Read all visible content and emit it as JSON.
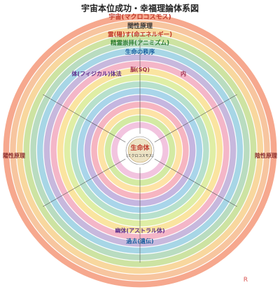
{
  "title": "宇宙本位成功・幸福理論体系図",
  "center": {
    "main": "生命体",
    "sub": "(ミクロコスモス)"
  },
  "ring_labels": {
    "macro": "宇宙(マクロコスモス)",
    "inter": "間性原理",
    "reiun": "霊(陽)す(命エネルギー)",
    "seirei": "精霊崇拝(アニミズム)",
    "order": "生命の秩序",
    "tai": "体(フィジカル)体法",
    "sq": "脳(SQ)",
    "naiiki": "内",
    "past": "過去(遺伝)",
    "astral": "幽体(アストラル体)",
    "left_spiritual": "陽性原理",
    "right_spiritual": "陰性原理"
  },
  "ring_colors": [
    "#f6a88e",
    "#f7c59f",
    "#f8d79e",
    "#cde3a2",
    "#b9dcc0",
    "#a7d6e6",
    "#c7b8dd",
    "#f4b6c8",
    "#fae4a0",
    "#dfeea5",
    "#b7e0cc",
    "#a9d5ea",
    "#c5b6e0",
    "#f6b5c1",
    "#fde3a6",
    "#d3eaa3",
    "#f2c4df",
    "#ffffff"
  ],
  "mark": "R"
}
